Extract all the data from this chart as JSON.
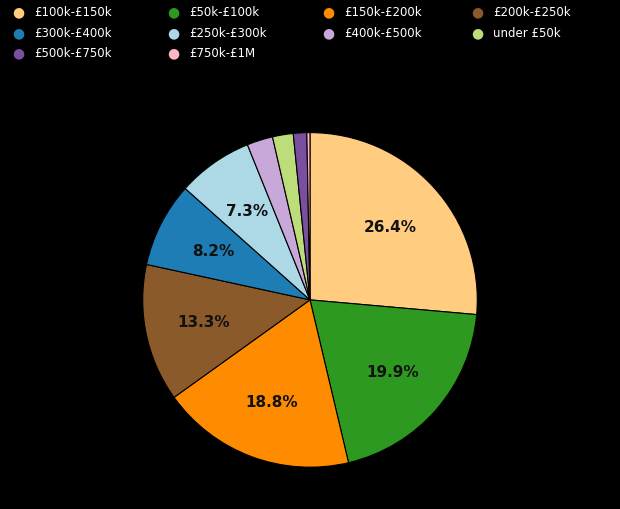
{
  "labels": [
    "£100k-£150k",
    "£50k-£100k",
    "£150k-£200k",
    "£200k-£250k",
    "£300k-£400k",
    "£250k-£300k",
    "£400k-£500k",
    "under £50k",
    "£500k-£750k",
    "£750k-£1M"
  ],
  "values": [
    26.4,
    19.9,
    18.8,
    13.3,
    8.2,
    7.3,
    2.5,
    2.0,
    1.3,
    0.3
  ],
  "colors": [
    "#FFCC80",
    "#2E9920",
    "#FF8C00",
    "#8B5A2B",
    "#1E7DB5",
    "#ADD8E6",
    "#C8A8D8",
    "#BCDD7A",
    "#7B4FA0",
    "#FFB6C1"
  ],
  "pct_labels": [
    "26.4%",
    "19.9%",
    "18.8%",
    "13.3%",
    "8.2%",
    "7.3%",
    "",
    "",
    "",
    ""
  ],
  "background_color": "#000000",
  "text_color": "#111111",
  "legend_text_color": "#ffffff",
  "legend_rows": [
    [
      "£100k-£150k",
      "£50k-£100k",
      "£150k-£200k",
      "£200k-£250k"
    ],
    [
      "£300k-£400k",
      "£250k-£300k",
      "£400k-£500k",
      "under £50k"
    ],
    [
      "£500k-£750k",
      "£750k-£1M"
    ]
  ]
}
